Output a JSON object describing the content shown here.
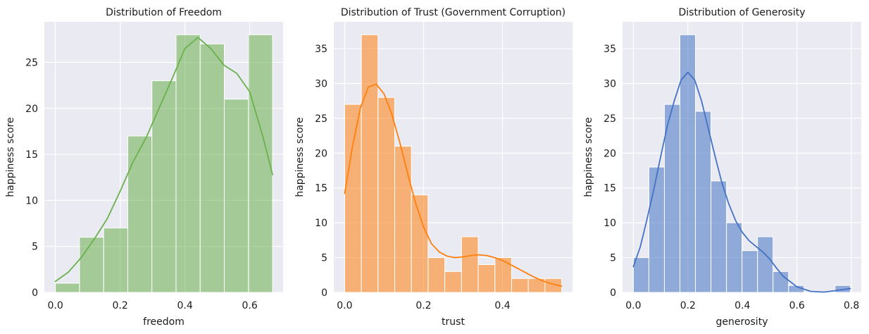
{
  "chart_data": [
    {
      "type": "bar",
      "title": "Distribution of Freedom",
      "xlabel": "freedom",
      "ylabel": "happiness score",
      "bar_color": "#6ab04c",
      "line_color": "#6ab04c",
      "xlim": [
        -0.034,
        0.703
      ],
      "ylim": [
        0,
        29.4
      ],
      "xticks": [
        0.0,
        0.2,
        0.4,
        0.6
      ],
      "xtick_labels": [
        "0.0",
        "0.2",
        "0.4",
        "0.6"
      ],
      "yticks": [
        0,
        5,
        10,
        15,
        20,
        25
      ],
      "ytick_labels": [
        "0",
        "5",
        "10",
        "15",
        "20",
        "25"
      ],
      "bin_edges": [
        0.0,
        0.0745,
        0.149,
        0.2235,
        0.298,
        0.3725,
        0.447,
        0.5215,
        0.596,
        0.6705
      ],
      "values": [
        1,
        6,
        7,
        17,
        23,
        28,
        27,
        21,
        28
      ],
      "kde": {
        "x": [
          0.0,
          0.04,
          0.08,
          0.12,
          0.16,
          0.2,
          0.24,
          0.28,
          0.32,
          0.36,
          0.4,
          0.44,
          0.48,
          0.52,
          0.56,
          0.6,
          0.64,
          0.6705
        ],
        "y": [
          1.2,
          2.2,
          3.8,
          5.8,
          8.0,
          11.0,
          14.2,
          16.8,
          20.0,
          23.2,
          26.5,
          27.7,
          26.5,
          24.7,
          23.8,
          21.8,
          17.0,
          12.8
        ]
      }
    },
    {
      "type": "bar",
      "title": "Distribution of Trust (Government Corruption)",
      "xlabel": "trust",
      "ylabel": "happiness score",
      "bar_color": "#ff7f0e",
      "line_color": "#ff7f0e",
      "xlim": [
        -0.0275,
        0.5775
      ],
      "ylim": [
        0,
        38.85
      ],
      "xticks": [
        0.0,
        0.2,
        0.4
      ],
      "xtick_labels": [
        "0.0",
        "0.2",
        "0.4"
      ],
      "yticks": [
        0,
        5,
        10,
        15,
        20,
        25,
        30,
        35
      ],
      "ytick_labels": [
        "0",
        "5",
        "10",
        "15",
        "20",
        "25",
        "30",
        "35"
      ],
      "bin_edges": [
        0.0,
        0.0423,
        0.0846,
        0.1269,
        0.1692,
        0.2115,
        0.2538,
        0.2962,
        0.3385,
        0.3808,
        0.4231,
        0.4654,
        0.5077,
        0.55
      ],
      "values": [
        27,
        37,
        28,
        21,
        14,
        5,
        3,
        8,
        4,
        5,
        2,
        2,
        2
      ],
      "kde": {
        "x": [
          0.0,
          0.02,
          0.04,
          0.06,
          0.08,
          0.1,
          0.12,
          0.14,
          0.16,
          0.18,
          0.2,
          0.22,
          0.24,
          0.26,
          0.28,
          0.3,
          0.32,
          0.34,
          0.36,
          0.38,
          0.4,
          0.42,
          0.44,
          0.46,
          0.48,
          0.5,
          0.52,
          0.55
        ],
        "y": [
          14.2,
          21.0,
          26.5,
          29.5,
          29.9,
          28.5,
          25.5,
          21.5,
          17.0,
          12.8,
          9.4,
          7.0,
          5.8,
          5.2,
          5.0,
          5.1,
          5.3,
          5.4,
          5.3,
          5.0,
          4.6,
          4.0,
          3.4,
          2.8,
          2.2,
          1.7,
          1.3,
          0.9
        ]
      }
    },
    {
      "type": "bar",
      "title": "Distribution of Generosity",
      "xlabel": "generosity",
      "ylabel": "happiness score",
      "bar_color": "#4472c4",
      "line_color": "#4472c4",
      "xlim": [
        -0.0398,
        0.8358
      ],
      "ylim": [
        0,
        38.85
      ],
      "xticks": [
        0.0,
        0.2,
        0.4,
        0.6,
        0.8
      ],
      "xtick_labels": [
        "0.0",
        "0.2",
        "0.4",
        "0.6",
        "0.8"
      ],
      "yticks": [
        0,
        5,
        10,
        15,
        20,
        25,
        30,
        35
      ],
      "ytick_labels": [
        "0",
        "5",
        "10",
        "15",
        "20",
        "25",
        "30",
        "35"
      ],
      "bin_edges": [
        0.0,
        0.0569,
        0.1138,
        0.1707,
        0.2277,
        0.2846,
        0.3415,
        0.3984,
        0.4553,
        0.5122,
        0.5691,
        0.626,
        0.6829,
        0.7398,
        0.796
      ],
      "values": [
        5,
        18,
        27,
        37,
        26,
        16,
        10,
        6,
        8,
        3,
        1,
        0,
        0,
        1
      ],
      "kde": {
        "x": [
          0.0,
          0.025,
          0.05,
          0.075,
          0.1,
          0.125,
          0.15,
          0.175,
          0.2,
          0.225,
          0.25,
          0.275,
          0.3,
          0.325,
          0.35,
          0.375,
          0.4,
          0.425,
          0.45,
          0.475,
          0.5,
          0.525,
          0.55,
          0.6,
          0.65,
          0.7,
          0.75,
          0.796
        ],
        "y": [
          3.7,
          6.5,
          10.5,
          14.8,
          19.5,
          24.0,
          27.5,
          30.5,
          31.6,
          30.5,
          27.5,
          23.5,
          19.5,
          15.7,
          12.7,
          10.3,
          8.6,
          7.4,
          6.6,
          5.8,
          4.8,
          3.5,
          2.3,
          0.8,
          0.15,
          0.05,
          0.3,
          0.55
        ]
      }
    }
  ]
}
